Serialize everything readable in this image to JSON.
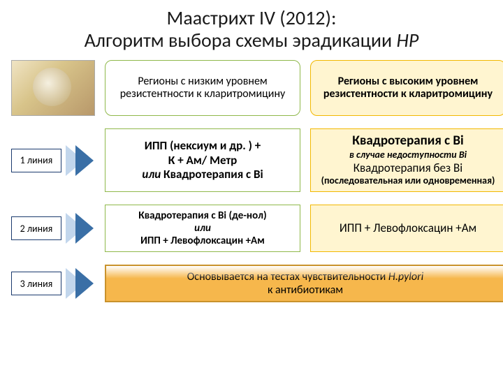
{
  "title_line1": "Маастрихт IV (2012):",
  "title_line2_a": "Алгоритм выбора схемы эрадикации ",
  "title_line2_b": "НР",
  "colors": {
    "title_text": "#1a1a1a",
    "header_low_border": "#8fb84a",
    "header_low_bg": "#ffffff",
    "header_high_border": "#f2b800",
    "header_high_bg": "#fff5d0",
    "cell_low_border": "#8fb84a",
    "cell_low_bg": "#ffffff",
    "cell_high_border": "#f2b800",
    "cell_high_bg": "#fff5d0",
    "line_label_border": "#1a3a6e",
    "chevron_outer": "#c2d6ec",
    "chevron_inner": "#3a6fa6",
    "wide_border": "#c9922c",
    "wide_bg": "#f6b74c"
  },
  "header_low": "Регионы с низким уровнем резистентности к кларитромицину",
  "header_high": "Регионы с высоким уровнем резистентности к кларитромицину",
  "rows": [
    {
      "label": "1 линия",
      "low_lines": [
        {
          "text": "ИПП (нексиум и др. )  +",
          "classes": "bold"
        },
        {
          "text": "К + Ам/ Метр",
          "classes": "bold"
        },
        {
          "text_a": "или",
          "text_b": "  Квадротерапия с Bi",
          "a_classes": "it bold",
          "b_classes": "bold"
        }
      ],
      "high_lines": [
        {
          "text": "Квадротерапия с Bi",
          "classes": "bold",
          "size": 19
        },
        {
          "text": "в случае недоступности Bi",
          "classes": "it bold small"
        },
        {
          "text": "Квадротерапия без Bi",
          "classes": ""
        },
        {
          "text": "(последовательная или одновременная)",
          "classes": "bold small"
        }
      ]
    },
    {
      "label": "2 линия",
      "low_lines": [
        {
          "text": "Квадротерапия с Bi (де-нол)",
          "classes": "bold",
          "size": 15
        },
        {
          "text": "или",
          "classes": "it bold",
          "size": 15
        },
        {
          "text": "ИПП + Левофлоксацин +Ам",
          "classes": "bold",
          "size": 15
        }
      ],
      "high_lines": [
        {
          "text": "ИПП + Левофлоксацин +Ам",
          "classes": ""
        }
      ]
    }
  ],
  "row3_label": "3 линия",
  "row3_text_a": "Основывается на тестах чувствительности ",
  "row3_text_b": "H.pylori",
  "row3_text_c": " к антибиотикам"
}
